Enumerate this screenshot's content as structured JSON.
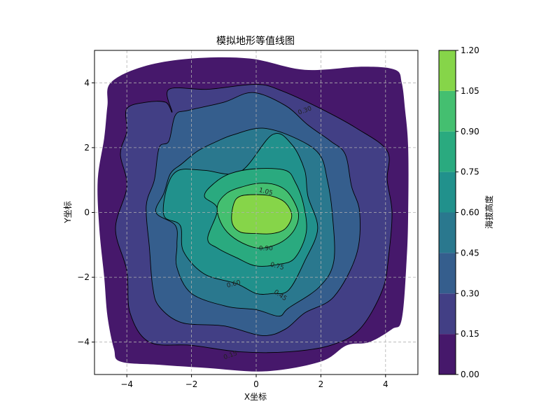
{
  "chart_data": {
    "type": "contour",
    "title": "模拟地形等值线图",
    "xlabel": "X坐标",
    "ylabel": "Y坐标",
    "xlim": [
      -5,
      5
    ],
    "ylim": [
      -5,
      5
    ],
    "xticks": [
      -4,
      -2,
      0,
      2,
      4
    ],
    "yticks": [
      -4,
      -2,
      0,
      2,
      4
    ],
    "xtick_labels": [
      "−4",
      "−2",
      "0",
      "2",
      "4"
    ],
    "ytick_labels": [
      "−4",
      "−2",
      "0",
      "2",
      "4"
    ],
    "grid": true,
    "levels": [
      0.0,
      0.15,
      0.3,
      0.45,
      0.6,
      0.75,
      0.9,
      1.05,
      1.2
    ],
    "colorbar": {
      "label": "海拔高度",
      "ticks": [
        0.0,
        0.15,
        0.3,
        0.45,
        0.6,
        0.75,
        0.9,
        1.05,
        1.2
      ],
      "tick_labels": [
        "0.00",
        "0.15",
        "0.30",
        "0.45",
        "0.60",
        "0.75",
        "0.90",
        "1.05",
        "1.20"
      ],
      "colors": [
        "#46186b",
        "#423f85",
        "#355e8d",
        "#2a788e",
        "#21918c",
        "#2aaa7f",
        "#44bf70",
        "#86d549",
        "#d5e21a"
      ]
    },
    "contour_labels": [
      {
        "text": "0.15",
        "x": -0.8,
        "y": -4.4,
        "angle": 20
      },
      {
        "text": "0.30",
        "x": 1.5,
        "y": 3.15,
        "angle": 20
      },
      {
        "text": "0.45",
        "x": 0.75,
        "y": -2.55,
        "angle": -35
      },
      {
        "text": "0.60",
        "x": -0.7,
        "y": -2.2,
        "angle": 15
      },
      {
        "text": "0.75",
        "x": 0.65,
        "y": -1.65,
        "angle": -15
      },
      {
        "text": "0.90",
        "x": 0.3,
        "y": -1.1,
        "angle": 0
      },
      {
        "text": "1.05",
        "x": 0.3,
        "y": 0.65,
        "angle": -15
      }
    ],
    "regions": [
      {
        "level": 0.0,
        "points": [
          [
            -3.5,
            4.5
          ],
          [
            -2.0,
            4.75
          ],
          [
            -0.2,
            4.75
          ],
          [
            1.5,
            4.4
          ],
          [
            3.3,
            4.5
          ],
          [
            4.3,
            4.4
          ],
          [
            4.5,
            4.0
          ],
          [
            4.6,
            3.2
          ],
          [
            4.7,
            2.0
          ],
          [
            4.7,
            0.0
          ],
          [
            4.65,
            -1.5
          ],
          [
            4.5,
            -3.3
          ],
          [
            4.2,
            -3.6
          ],
          [
            3.5,
            -4.0
          ],
          [
            2.8,
            -4.1
          ],
          [
            2.0,
            -4.6
          ],
          [
            0.3,
            -4.9
          ],
          [
            -1.5,
            -4.8
          ],
          [
            -3.0,
            -4.7
          ],
          [
            -4.2,
            -4.6
          ],
          [
            -4.4,
            -4.2
          ],
          [
            -4.6,
            -3.2
          ],
          [
            -4.7,
            -2.0
          ],
          [
            -4.85,
            -0.5
          ],
          [
            -4.9,
            1.0
          ],
          [
            -4.7,
            2.3
          ],
          [
            -4.6,
            3.3
          ],
          [
            -4.5,
            4.0
          ]
        ]
      },
      {
        "level": 0.15,
        "points": [
          [
            -4.0,
            3.2
          ],
          [
            -3.4,
            3.4
          ],
          [
            -2.8,
            3.4
          ],
          [
            -2.6,
            3.1
          ],
          [
            -2.7,
            3.8
          ],
          [
            -1.5,
            3.8
          ],
          [
            0.0,
            3.95
          ],
          [
            0.8,
            3.75
          ],
          [
            2.0,
            3.2
          ],
          [
            3.1,
            2.6
          ],
          [
            4.05,
            1.9
          ],
          [
            4.05,
            1.0
          ],
          [
            4.2,
            0.0
          ],
          [
            4.1,
            -1.3
          ],
          [
            3.9,
            -2.4
          ],
          [
            3.2,
            -3.6
          ],
          [
            2.3,
            -4.1
          ],
          [
            1.0,
            -4.3
          ],
          [
            -0.5,
            -4.3
          ],
          [
            -2.0,
            -4.1
          ],
          [
            -3.3,
            -4.0
          ],
          [
            -3.9,
            -3.1
          ],
          [
            -4.0,
            -1.8
          ],
          [
            -4.35,
            -0.5
          ],
          [
            -4.0,
            0.8
          ],
          [
            -4.2,
            1.8
          ],
          [
            -4.0,
            2.5
          ]
        ]
      },
      {
        "level": 0.3,
        "points": [
          [
            -3.0,
            2.0
          ],
          [
            -2.7,
            2.2
          ],
          [
            -2.5,
            3.0
          ],
          [
            -2.1,
            3.15
          ],
          [
            -1.0,
            3.4
          ],
          [
            -0.1,
            3.7
          ],
          [
            0.9,
            3.3
          ],
          [
            1.6,
            2.7
          ],
          [
            2.3,
            2.2
          ],
          [
            2.75,
            1.8
          ],
          [
            2.95,
            0.8
          ],
          [
            3.2,
            0.0
          ],
          [
            3.1,
            -1.3
          ],
          [
            2.4,
            -2.6
          ],
          [
            1.5,
            -3.1
          ],
          [
            0.9,
            -3.6
          ],
          [
            0.2,
            -3.8
          ],
          [
            -1.0,
            -3.5
          ],
          [
            -2.3,
            -3.4
          ],
          [
            -3.0,
            -2.9
          ],
          [
            -3.2,
            -2.3
          ],
          [
            -3.3,
            -1.1
          ],
          [
            -3.4,
            0.2
          ],
          [
            -3.15,
            1.0
          ]
        ]
      },
      {
        "level": 0.45,
        "points": [
          [
            -2.85,
            0.6
          ],
          [
            -2.65,
            1.2
          ],
          [
            -2.3,
            1.5
          ],
          [
            -1.8,
            1.9
          ],
          [
            -1.2,
            2.2
          ],
          [
            -0.7,
            2.4
          ],
          [
            0.2,
            2.6
          ],
          [
            1.2,
            2.3
          ],
          [
            1.95,
            1.8
          ],
          [
            2.2,
            1.0
          ],
          [
            2.35,
            0.0
          ],
          [
            2.4,
            -1.5
          ],
          [
            1.95,
            -2.3
          ],
          [
            1.0,
            -2.95
          ],
          [
            0.7,
            -3.2
          ],
          [
            0.0,
            -3.0
          ],
          [
            -0.9,
            -2.9
          ],
          [
            -2.0,
            -2.5
          ],
          [
            -2.45,
            -1.7
          ],
          [
            -2.45,
            -1.0
          ],
          [
            -2.5,
            -0.4
          ],
          [
            -3.1,
            0.0
          ]
        ]
      },
      {
        "level": 0.6,
        "points": [
          [
            -2.85,
            -0.1
          ],
          [
            -2.75,
            0.8
          ],
          [
            -2.4,
            1.3
          ],
          [
            -1.6,
            1.3
          ],
          [
            -0.5,
            1.25
          ],
          [
            0.5,
            2.4
          ],
          [
            1.1,
            2.1
          ],
          [
            1.5,
            1.3
          ],
          [
            1.6,
            0.5
          ],
          [
            1.9,
            -0.5
          ],
          [
            1.5,
            -1.5
          ],
          [
            1.0,
            -2.4
          ],
          [
            0.5,
            -2.5
          ],
          [
            0.0,
            -2.5
          ],
          [
            -0.6,
            -2.2
          ],
          [
            -1.6,
            -1.9
          ],
          [
            -2.25,
            -1.2
          ],
          [
            -2.35,
            -0.4
          ]
        ]
      },
      {
        "level": 0.75,
        "points": [
          [
            -1.6,
            0.5
          ],
          [
            -1.3,
            0.9
          ],
          [
            -0.8,
            1.2
          ],
          [
            0.0,
            1.35
          ],
          [
            0.9,
            1.3
          ],
          [
            1.2,
            0.95
          ],
          [
            1.45,
            0.3
          ],
          [
            1.55,
            -0.6
          ],
          [
            1.2,
            -1.4
          ],
          [
            0.7,
            -1.6
          ],
          [
            0.0,
            -1.65
          ],
          [
            -0.6,
            -1.4
          ],
          [
            -1.2,
            -1.1
          ],
          [
            -1.5,
            -0.8
          ],
          [
            -1.2,
            0.1
          ]
        ]
      },
      {
        "level": 0.9,
        "points": [
          [
            -1.2,
            0.2
          ],
          [
            -0.9,
            0.6
          ],
          [
            -0.4,
            0.8
          ],
          [
            0.1,
            0.9
          ],
          [
            0.6,
            0.85
          ],
          [
            1.0,
            0.6
          ],
          [
            1.3,
            0.0
          ],
          [
            1.2,
            -0.5
          ],
          [
            0.8,
            -0.9
          ],
          [
            0.2,
            -1.1
          ],
          [
            -0.3,
            -1.0
          ],
          [
            -0.8,
            -0.7
          ],
          [
            -1.1,
            -0.3
          ]
        ]
      },
      {
        "level": 1.05,
        "points": [
          [
            -0.7,
            0.25
          ],
          [
            -0.5,
            0.5
          ],
          [
            0.0,
            0.55
          ],
          [
            0.5,
            0.5
          ],
          [
            0.9,
            0.3
          ],
          [
            1.1,
            -0.1
          ],
          [
            0.9,
            -0.5
          ],
          [
            0.5,
            -0.65
          ],
          [
            0.0,
            -0.65
          ],
          [
            -0.5,
            -0.6
          ],
          [
            -0.75,
            -0.3
          ]
        ]
      }
    ]
  }
}
